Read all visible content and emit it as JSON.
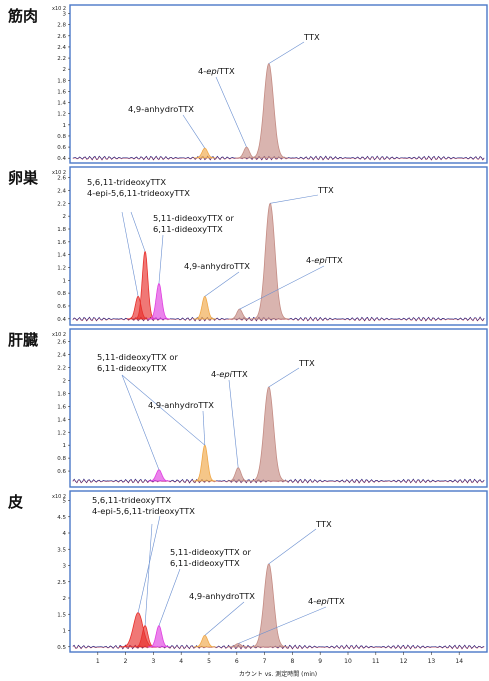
{
  "chart_data": [
    {
      "type": "line",
      "tissue_label": "筋肉",
      "y_exponent": "x10 2",
      "ylim": [
        0.35,
        3.1
      ],
      "y_ticks": [
        "0.4",
        "0.6",
        "0.8",
        "1",
        "1.2",
        "1.4",
        "1.6",
        "1.8",
        "2",
        "2.2",
        "2.4",
        "2.6",
        "2.8",
        "3"
      ],
      "peaks": [
        {
          "x": 4.85,
          "height": 0.58,
          "color": "#f0a848"
        },
        {
          "x": 6.35,
          "height": 0.6,
          "color": "#c48c84"
        },
        {
          "x": 7.15,
          "height": 2.1,
          "color": "#c48c84"
        }
      ],
      "annotations": [
        {
          "lines": [
            "TTX"
          ],
          "target_x": 7.15,
          "target_y": 2.1
        },
        {
          "lines": [
            "4-",
            "epi",
            "TTX"
          ],
          "styled": true,
          "target_x": 6.35,
          "target_y": 0.6
        },
        {
          "lines": [
            "4,9-anhydroTTX"
          ],
          "target_x": 4.85,
          "target_y": 0.58
        }
      ]
    },
    {
      "type": "line",
      "tissue_label": "卵巣",
      "y_exponent": "x10 2",
      "ylim": [
        0.35,
        2.72
      ],
      "y_ticks": [
        "0.4",
        "0.6",
        "0.8",
        "1",
        "1.2",
        "1.4",
        "1.6",
        "1.8",
        "2",
        "2.2",
        "2.4",
        "2.6"
      ],
      "peaks": [
        {
          "x": 2.45,
          "height": 0.75,
          "color": "#e8302c"
        },
        {
          "x": 2.7,
          "height": 1.45,
          "color": "#e8302c"
        },
        {
          "x": 3.2,
          "height": 0.95,
          "color": "#e040e0"
        },
        {
          "x": 4.85,
          "height": 0.75,
          "color": "#f0a848"
        },
        {
          "x": 6.1,
          "height": 0.55,
          "color": "#c48c84"
        },
        {
          "x": 7.2,
          "height": 2.2,
          "color": "#c48c84"
        }
      ],
      "annotations": [
        {
          "lines": [
            "5,6,11-trideoxyTTX",
            "4-epi-5,6,11-trideoxyTTX"
          ],
          "target_x": 2.45,
          "target_y": 0.75
        },
        {
          "lines": [
            "5,11-dideoxyTTX or",
            "6,11-dideoxyTTX"
          ],
          "target_x": 3.2,
          "target_y": 0.95
        },
        {
          "lines": [
            "TTX"
          ],
          "target_x": 7.2,
          "target_y": 2.2
        },
        {
          "lines": [
            "4,9-anhydroTTX"
          ],
          "target_x": 4.85,
          "target_y": 0.75
        },
        {
          "lines": [
            "4-",
            "epi",
            "TTX"
          ],
          "styled": true,
          "target_x": 6.1,
          "target_y": 0.55
        }
      ]
    },
    {
      "type": "line",
      "tissue_label": "肝臓",
      "y_exponent": "x10 2",
      "ylim": [
        0.4,
        2.75
      ],
      "y_ticks": [
        "0.6",
        "0.8",
        "1",
        "1.2",
        "1.4",
        "1.6",
        "1.8",
        "2",
        "2.2",
        "2.4",
        "2.6"
      ],
      "peaks": [
        {
          "x": 3.2,
          "height": 0.62,
          "color": "#e040e0"
        },
        {
          "x": 4.85,
          "height": 1.0,
          "color": "#f0a848"
        },
        {
          "x": 6.05,
          "height": 0.65,
          "color": "#c48c84"
        },
        {
          "x": 7.15,
          "height": 1.9,
          "color": "#c48c84"
        }
      ],
      "annotations": [
        {
          "lines": [
            "5,11-dideoxyTTX or",
            "6,11-dideoxyTTX"
          ],
          "target_x": 3.2,
          "target_y": 0.62
        },
        {
          "lines": [
            "TTX"
          ],
          "target_x": 7.15,
          "target_y": 1.9
        },
        {
          "lines": [
            "4-",
            "epi",
            "TTX"
          ],
          "styled": true,
          "target_x": 6.05,
          "target_y": 0.65
        },
        {
          "lines": [
            "4,9-anhydroTTX"
          ],
          "target_x": 4.85,
          "target_y": 1.0
        }
      ]
    },
    {
      "type": "line",
      "tissue_label": "皮",
      "y_exponent": "x10 2",
      "ylim": [
        0.4,
        5.2
      ],
      "y_ticks": [
        "0.5",
        "1",
        "1.5",
        "2",
        "2.5",
        "3",
        "3.5",
        "4",
        "4.5",
        "5"
      ],
      "peaks": [
        {
          "x": 2.45,
          "height": 1.55,
          "color": "#e8302c"
        },
        {
          "x": 2.7,
          "height": 1.15,
          "color": "#e8302c"
        },
        {
          "x": 3.2,
          "height": 1.15,
          "color": "#e040e0"
        },
        {
          "x": 4.85,
          "height": 0.85,
          "color": "#f0a848"
        },
        {
          "x": 6.05,
          "height": 0.6,
          "color": "#c48c84"
        },
        {
          "x": 7.15,
          "height": 3.05,
          "color": "#c48c84"
        }
      ],
      "annotations": [
        {
          "lines": [
            "5,6,11-trideoxyTTX",
            "4-epi-5,6,11-trideoxyTTX"
          ],
          "target_x": 2.45,
          "target_y": 1.55
        },
        {
          "lines": [
            "5,11-dideoxyTTX or",
            "6,11-dideoxyTTX"
          ],
          "target_x": 3.2,
          "target_y": 1.15
        },
        {
          "lines": [
            "TTX"
          ],
          "target_x": 7.15,
          "target_y": 3.05
        },
        {
          "lines": [
            "4,9-anhydroTTX"
          ],
          "target_x": 4.85,
          "target_y": 0.85
        },
        {
          "lines": [
            "4-",
            "epi",
            "TTX"
          ],
          "styled": true,
          "target_x": 6.05,
          "target_y": 0.6
        }
      ]
    }
  ],
  "x_axis": {
    "ticks": [
      "1",
      "2",
      "3",
      "4",
      "5",
      "6",
      "7",
      "8",
      "9",
      "10",
      "11",
      "12",
      "13",
      "14"
    ],
    "range": [
      0,
      15
    ],
    "label": "カウント vs. 測定時間 (min)"
  },
  "colors": {
    "axis_frame": "#4a78c8",
    "baseline": "#202080",
    "ttx": "#c48c84",
    "anhydro": "#f0a848",
    "trideoxy": "#e8302c",
    "dideoxy": "#e040e0"
  }
}
